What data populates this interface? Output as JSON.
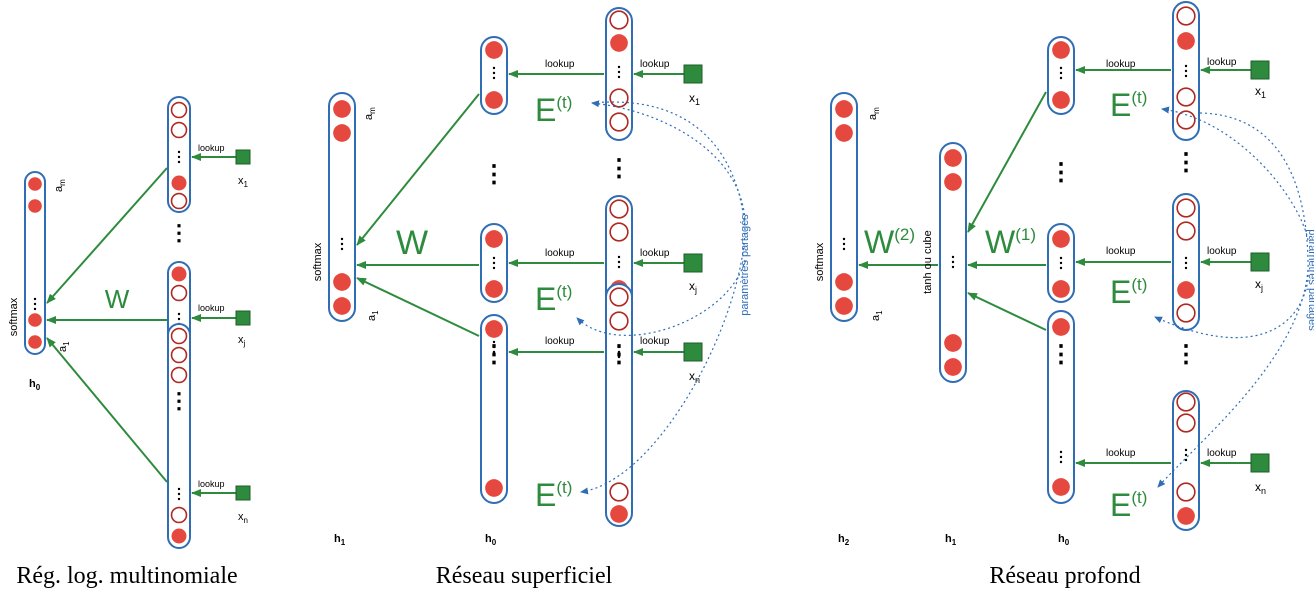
{
  "colors": {
    "arrow": "#2e8b3d",
    "column_border": "#2f6db5",
    "unit_fill": "#e5483f",
    "unit_ring": "#b02a22",
    "input_square": "#2e8b3d",
    "shared_params": "#2f6db5",
    "text_green": "#2e8b3d"
  },
  "common": {
    "lookup": "lookup",
    "softmax": "softmax",
    "a_m": "a",
    "a_m_sub": "m",
    "a_1": "a",
    "a_1_sub": "1",
    "x": "x",
    "x1_sub": "1",
    "xj_sub": "j",
    "xn_sub": "n",
    "h": "h",
    "dots": "⋮",
    "E": "E",
    "t_sup": "(t)"
  },
  "panel1": {
    "caption": "Rég. log. multinomiale",
    "W": "W",
    "h0_sub": "0"
  },
  "panel2": {
    "caption": "Réseau superficiel",
    "W": "W",
    "h1_sub": "1",
    "h0_sub": "0",
    "shared": "paramètres partagés"
  },
  "panel3": {
    "caption": "Réseau profond",
    "W2": "W",
    "W2_sup": "(2)",
    "W1": "W",
    "W1_sup": "(1)",
    "h2_sub": "2",
    "h1_sub": "1",
    "h0_sub": "0",
    "hidden_label": "tanh ou cube",
    "shared": "paramètres partagés"
  }
}
